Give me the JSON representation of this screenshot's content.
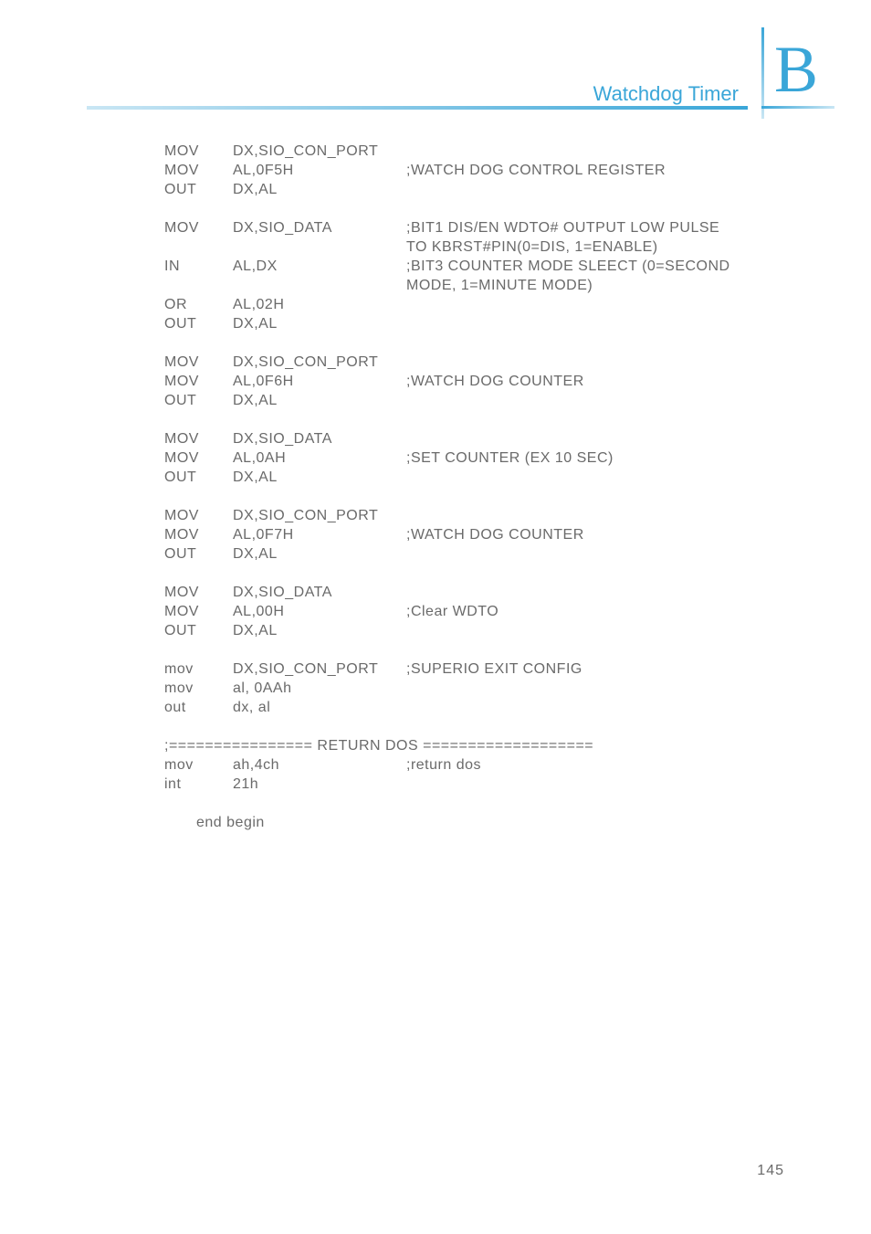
{
  "header": {
    "title": "Watchdog Timer",
    "badge": "B"
  },
  "page_number": "145",
  "colors": {
    "accent": "#3aa6d8",
    "text": "#6a6a6a"
  },
  "blocks": [
    {
      "lines": [
        {
          "op": "MOV",
          "arg": "DX,SIO_CON_PORT",
          "cmt": ""
        },
        {
          "op": "MOV",
          "arg": "AL,0F5H",
          "cmt": ";WATCH DOG CONTROL REGISTER"
        },
        {
          "op": "OUT",
          "arg": "DX,AL",
          "cmt": ""
        }
      ]
    },
    {
      "lines": [
        {
          "op": "MOV",
          "arg": "DX,SIO_DATA",
          "cmt": ";BIT1 DIS/EN WDTO# OUTPUT LOW PULSE"
        },
        {
          "op": "",
          "arg": "",
          "cmt": "TO KBRST#PIN(0=DIS, 1=ENABLE)",
          "cont": true
        },
        {
          "op": "IN",
          "arg": "AL,DX",
          "cmt": ";BIT3 COUNTER MODE SLEECT (0=SECOND"
        },
        {
          "op": "",
          "arg": "",
          "cmt": "MODE, 1=MINUTE MODE)",
          "cont": true
        },
        {
          "op": "OR",
          "arg": "AL,02H",
          "cmt": ""
        },
        {
          "op": "OUT",
          "arg": "DX,AL",
          "cmt": ""
        }
      ]
    },
    {
      "lines": [
        {
          "op": "MOV",
          "arg": "DX,SIO_CON_PORT",
          "cmt": ""
        },
        {
          "op": "MOV",
          "arg": "AL,0F6H",
          "cmt": ";WATCH DOG COUNTER"
        },
        {
          "op": "OUT",
          "arg": "DX,AL",
          "cmt": ""
        }
      ]
    },
    {
      "lines": [
        {
          "op": "MOV",
          "arg": "DX,SIO_DATA",
          "cmt": ""
        },
        {
          "op": "MOV",
          "arg": "AL,0AH",
          "cmt": ";SET COUNTER (EX 10 SEC)"
        },
        {
          "op": "OUT",
          "arg": "DX,AL",
          "cmt": ""
        }
      ]
    },
    {
      "lines": [
        {
          "op": "MOV",
          "arg": "DX,SIO_CON_PORT",
          "cmt": ""
        },
        {
          "op": "MOV",
          "arg": "AL,0F7H",
          "cmt": ";WATCH DOG COUNTER"
        },
        {
          "op": "OUT",
          "arg": "DX,AL",
          "cmt": ""
        }
      ]
    },
    {
      "lines": [
        {
          "op": "MOV",
          "arg": "DX,SIO_DATA",
          "cmt": ""
        },
        {
          "op": "MOV",
          "arg": "AL,00H",
          "cmt": ";Clear WDTO"
        },
        {
          "op": "OUT",
          "arg": "DX,AL",
          "cmt": ""
        }
      ]
    },
    {
      "lines": [
        {
          "op": "mov",
          "arg": "DX,SIO_CON_PORT",
          "cmt": ";SUPERIO EXIT CONFIG"
        },
        {
          "op": "mov",
          "arg": "al, 0AAh",
          "cmt": ""
        },
        {
          "op": "out",
          "arg": "dx, al",
          "cmt": ""
        }
      ]
    },
    {
      "lines": [
        {
          "full": ";================ RETURN DOS ==================="
        },
        {
          "op": "mov",
          "arg": "ah,4ch",
          "cmt": ";return dos"
        },
        {
          "op": "int",
          "arg": "21h",
          "cmt": ""
        }
      ]
    },
    {
      "lines": [
        {
          "indent": true,
          "full": "end begin"
        }
      ]
    }
  ]
}
